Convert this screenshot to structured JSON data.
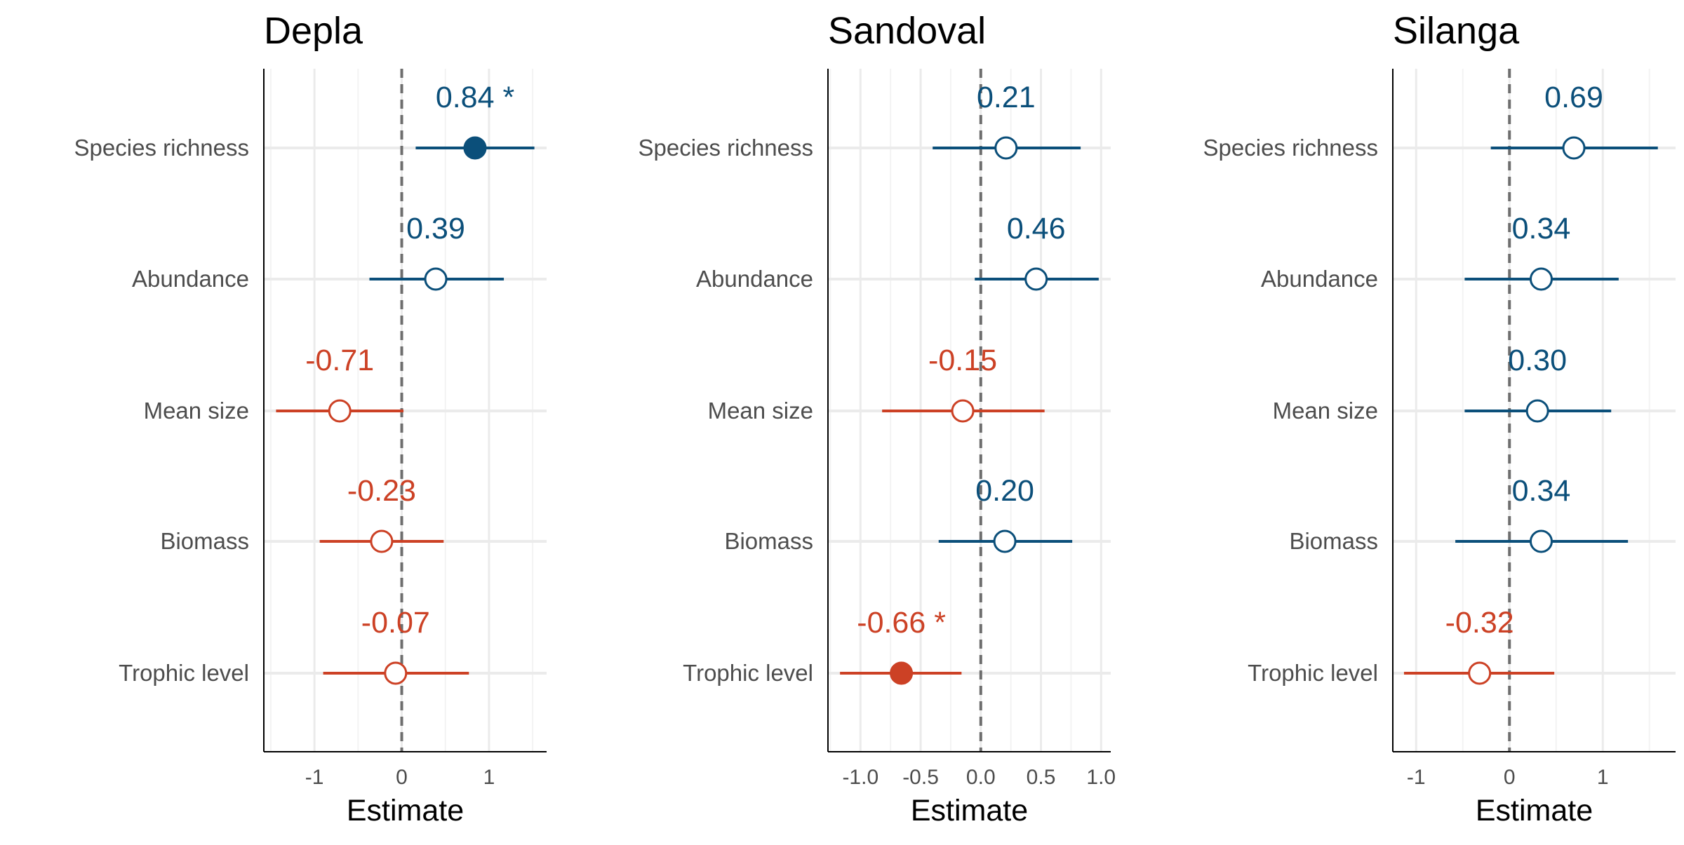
{
  "chart_data": [
    {
      "type": "forest",
      "title": "Depla",
      "xlabel": "Estimate",
      "xlim": [
        -1.58,
        1.66
      ],
      "xticks": [
        -1,
        0,
        1
      ],
      "xtick_labels": [
        "-1",
        "0",
        "1"
      ],
      "grid": true,
      "rows": [
        {
          "label": "Species richness",
          "estimate": 0.84,
          "lower": 0.16,
          "upper": 1.52,
          "value_label": "0.84 *",
          "significant": true
        },
        {
          "label": "Abundance",
          "estimate": 0.39,
          "lower": -0.37,
          "upper": 1.17,
          "value_label": "0.39",
          "significant": false
        },
        {
          "label": "Mean size",
          "estimate": -0.71,
          "lower": -1.44,
          "upper": 0.02,
          "value_label": "-0.71",
          "significant": false
        },
        {
          "label": "Biomass",
          "estimate": -0.23,
          "lower": -0.94,
          "upper": 0.48,
          "value_label": "-0.23",
          "significant": false
        },
        {
          "label": "Trophic level",
          "estimate": -0.07,
          "lower": -0.9,
          "upper": 0.77,
          "value_label": "-0.07",
          "significant": false
        }
      ]
    },
    {
      "type": "forest",
      "title": "Sandoval",
      "xlabel": "Estimate",
      "xlim": [
        -1.27,
        1.08
      ],
      "xticks": [
        -1.0,
        -0.5,
        0.0,
        0.5,
        1.0
      ],
      "xtick_labels": [
        "-1.0",
        "-0.5",
        "0.0",
        "0.5",
        "1.0"
      ],
      "grid": true,
      "rows": [
        {
          "label": "Species richness",
          "estimate": 0.21,
          "lower": -0.4,
          "upper": 0.83,
          "value_label": "0.21",
          "significant": false
        },
        {
          "label": "Abundance",
          "estimate": 0.46,
          "lower": -0.05,
          "upper": 0.98,
          "value_label": "0.46",
          "significant": false
        },
        {
          "label": "Mean size",
          "estimate": -0.15,
          "lower": -0.82,
          "upper": 0.53,
          "value_label": "-0.15",
          "significant": false
        },
        {
          "label": "Biomass",
          "estimate": 0.2,
          "lower": -0.35,
          "upper": 0.76,
          "value_label": "0.20",
          "significant": false
        },
        {
          "label": "Trophic level",
          "estimate": -0.66,
          "lower": -1.17,
          "upper": -0.16,
          "value_label": "-0.66 *",
          "significant": true
        }
      ]
    },
    {
      "type": "forest",
      "title": "Silanga",
      "xlabel": "Estimate",
      "xlim": [
        -1.25,
        1.78
      ],
      "xticks": [
        -1,
        0,
        1
      ],
      "xtick_labels": [
        "-1",
        "0",
        "1"
      ],
      "grid": true,
      "rows": [
        {
          "label": "Species richness",
          "estimate": 0.69,
          "lower": -0.2,
          "upper": 1.59,
          "value_label": "0.69",
          "significant": false
        },
        {
          "label": "Abundance",
          "estimate": 0.34,
          "lower": -0.48,
          "upper": 1.17,
          "value_label": "0.34",
          "significant": false
        },
        {
          "label": "Mean size",
          "estimate": 0.3,
          "lower": -0.48,
          "upper": 1.09,
          "value_label": "0.30",
          "significant": false
        },
        {
          "label": "Biomass",
          "estimate": 0.34,
          "lower": -0.58,
          "upper": 1.27,
          "value_label": "0.34",
          "significant": false
        },
        {
          "label": "Trophic level",
          "estimate": -0.32,
          "lower": -1.13,
          "upper": 0.48,
          "value_label": "-0.32",
          "significant": false
        }
      ]
    }
  ],
  "colors": {
    "positive": "#0b4f7a",
    "negative": "#cc4125",
    "zero_line": "#6e6e6e",
    "grid": "#ebebeb",
    "axis": "#000000"
  }
}
